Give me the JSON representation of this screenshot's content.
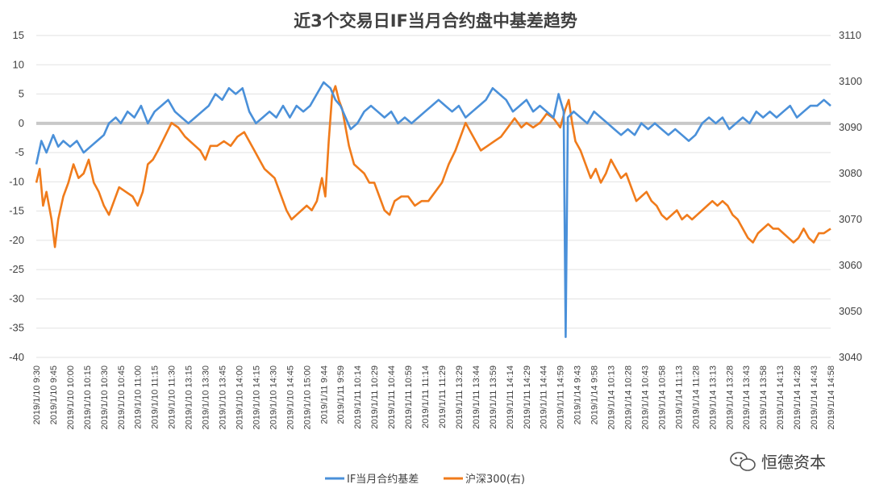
{
  "chart_data": {
    "type": "line",
    "title": "近3个交易日IF当月合约盘中基差趋势",
    "left_axis": {
      "min": -40,
      "max": 15,
      "step": 5,
      "ticks": [
        "15",
        "10",
        "5",
        "0",
        "-5",
        "-10",
        "-15",
        "-20",
        "-25",
        "-30",
        "-35",
        "-40"
      ]
    },
    "right_axis": {
      "min": 3040,
      "max": 3110,
      "step": 10,
      "ticks": [
        "3110",
        "3100",
        "3090",
        "3080",
        "3070",
        "3060",
        "3050",
        "3040"
      ]
    },
    "x_labels": [
      "2019/1/10 9:30",
      "2019/1/10 9:45",
      "2019/1/10 10:00",
      "2019/1/10 10:15",
      "2019/1/10 10:30",
      "2019/1/10 10:45",
      "2019/1/10 11:00",
      "2019/1/10 11:15",
      "2019/1/10 11:30",
      "2019/1/10 13:15",
      "2019/1/10 13:30",
      "2019/1/10 13:45",
      "2019/1/10 14:00",
      "2019/1/10 14:15",
      "2019/1/10 14:30",
      "2019/1/10 14:45",
      "2019/1/10 15:00",
      "2019/1/11 9:44",
      "2019/1/11 9:59",
      "2019/1/11 10:14",
      "2019/1/11 10:29",
      "2019/1/11 10:44",
      "2019/1/11 10:59",
      "2019/1/11 11:14",
      "2019/1/11 11:29",
      "2019/1/11 13:29",
      "2019/1/11 13:44",
      "2019/1/11 13:59",
      "2019/1/11 14:14",
      "2019/1/11 14:29",
      "2019/1/11 14:44",
      "2019/1/11 14:59",
      "2019/1/14 9:43",
      "2019/1/14 9:58",
      "2019/1/14 10:13",
      "2019/1/14 10:28",
      "2019/1/14 10:43",
      "2019/1/14 10:58",
      "2019/1/14 11:13",
      "2019/1/14 11:28",
      "2019/1/14 13:13",
      "2019/1/14 13:28",
      "2019/1/14 13:43",
      "2019/1/14 13:58",
      "2019/1/14 14:13",
      "2019/1/14 14:28",
      "2019/1/14 14:43",
      "2019/1/14 14:58"
    ],
    "series": [
      {
        "name": "IF当月合约基差",
        "axis": "left",
        "color": "#4a90d9",
        "points": [
          [
            0,
            -7
          ],
          [
            0.3,
            -3
          ],
          [
            0.6,
            -5
          ],
          [
            1,
            -2
          ],
          [
            1.3,
            -4
          ],
          [
            1.6,
            -3
          ],
          [
            2,
            -4
          ],
          [
            2.4,
            -3
          ],
          [
            2.8,
            -5
          ],
          [
            3.2,
            -4
          ],
          [
            3.6,
            -3
          ],
          [
            4,
            -2
          ],
          [
            4.3,
            0
          ],
          [
            4.7,
            1
          ],
          [
            5,
            0
          ],
          [
            5.4,
            2
          ],
          [
            5.8,
            1
          ],
          [
            6.2,
            3
          ],
          [
            6.6,
            0
          ],
          [
            7,
            2
          ],
          [
            7.4,
            3
          ],
          [
            7.8,
            4
          ],
          [
            8.2,
            2
          ],
          [
            8.6,
            1
          ],
          [
            9,
            0
          ],
          [
            9.4,
            1
          ],
          [
            9.8,
            2
          ],
          [
            10.2,
            3
          ],
          [
            10.6,
            5
          ],
          [
            11,
            4
          ],
          [
            11.4,
            6
          ],
          [
            11.8,
            5
          ],
          [
            12.2,
            6
          ],
          [
            12.6,
            2
          ],
          [
            13,
            0
          ],
          [
            13.4,
            1
          ],
          [
            13.8,
            2
          ],
          [
            14.2,
            1
          ],
          [
            14.6,
            3
          ],
          [
            15,
            1
          ],
          [
            15.4,
            3
          ],
          [
            15.8,
            2
          ],
          [
            16.2,
            3
          ],
          [
            16.6,
            5
          ],
          [
            17,
            7
          ],
          [
            17.4,
            6
          ],
          [
            17.7,
            4
          ],
          [
            18,
            3
          ],
          [
            18.3,
            1
          ],
          [
            18.6,
            -1
          ],
          [
            19,
            0
          ],
          [
            19.4,
            2
          ],
          [
            19.8,
            3
          ],
          [
            20.2,
            2
          ],
          [
            20.6,
            1
          ],
          [
            21,
            2
          ],
          [
            21.4,
            0
          ],
          [
            21.8,
            1
          ],
          [
            22.2,
            0
          ],
          [
            22.6,
            1
          ],
          [
            23,
            2
          ],
          [
            23.4,
            3
          ],
          [
            23.8,
            4
          ],
          [
            24.2,
            3
          ],
          [
            24.6,
            2
          ],
          [
            25,
            3
          ],
          [
            25.4,
            1
          ],
          [
            25.8,
            2
          ],
          [
            26.2,
            3
          ],
          [
            26.6,
            4
          ],
          [
            27,
            6
          ],
          [
            27.4,
            5
          ],
          [
            27.8,
            4
          ],
          [
            28.2,
            2
          ],
          [
            28.6,
            3
          ],
          [
            29,
            4
          ],
          [
            29.4,
            2
          ],
          [
            29.8,
            3
          ],
          [
            30.2,
            2
          ],
          [
            30.6,
            1
          ],
          [
            30.9,
            5
          ],
          [
            31.2,
            2
          ],
          [
            31.32,
            -36.5
          ],
          [
            31.45,
            1
          ],
          [
            31.8,
            2
          ],
          [
            32.2,
            1
          ],
          [
            32.6,
            0
          ],
          [
            33,
            2
          ],
          [
            33.4,
            1
          ],
          [
            33.8,
            0
          ],
          [
            34.2,
            -1
          ],
          [
            34.6,
            -2
          ],
          [
            35,
            -1
          ],
          [
            35.4,
            -2
          ],
          [
            35.8,
            0
          ],
          [
            36.2,
            -1
          ],
          [
            36.6,
            0
          ],
          [
            37,
            -1
          ],
          [
            37.4,
            -2
          ],
          [
            37.8,
            -1
          ],
          [
            38.2,
            -2
          ],
          [
            38.6,
            -3
          ],
          [
            39,
            -2
          ],
          [
            39.4,
            0
          ],
          [
            39.8,
            1
          ],
          [
            40.2,
            0
          ],
          [
            40.6,
            1
          ],
          [
            41,
            -1
          ],
          [
            41.4,
            0
          ],
          [
            41.8,
            1
          ],
          [
            42.2,
            0
          ],
          [
            42.6,
            2
          ],
          [
            43,
            1
          ],
          [
            43.4,
            2
          ],
          [
            43.8,
            1
          ],
          [
            44.2,
            2
          ],
          [
            44.6,
            3
          ],
          [
            45,
            1
          ],
          [
            45.4,
            2
          ],
          [
            45.8,
            3
          ],
          [
            46.2,
            3
          ],
          [
            46.6,
            4
          ],
          [
            47,
            3
          ]
        ]
      },
      {
        "name": "沪深300(右)",
        "axis": "right",
        "color": "#f07b1b",
        "points": [
          [
            0,
            3078
          ],
          [
            0.2,
            3081
          ],
          [
            0.4,
            3073
          ],
          [
            0.6,
            3076
          ],
          [
            0.9,
            3070
          ],
          [
            1.1,
            3064
          ],
          [
            1.3,
            3070
          ],
          [
            1.6,
            3075
          ],
          [
            1.9,
            3078
          ],
          [
            2.2,
            3082
          ],
          [
            2.5,
            3079
          ],
          [
            2.8,
            3080
          ],
          [
            3.1,
            3083
          ],
          [
            3.4,
            3078
          ],
          [
            3.7,
            3076
          ],
          [
            4,
            3073
          ],
          [
            4.3,
            3071
          ],
          [
            4.6,
            3074
          ],
          [
            4.9,
            3077
          ],
          [
            5.3,
            3076
          ],
          [
            5.7,
            3075
          ],
          [
            6,
            3073
          ],
          [
            6.3,
            3076
          ],
          [
            6.6,
            3082
          ],
          [
            6.9,
            3083
          ],
          [
            7.2,
            3085
          ],
          [
            7.6,
            3088
          ],
          [
            8,
            3091
          ],
          [
            8.4,
            3090
          ],
          [
            8.8,
            3088
          ],
          [
            9.1,
            3087
          ],
          [
            9.4,
            3086
          ],
          [
            9.7,
            3085
          ],
          [
            10,
            3083
          ],
          [
            10.3,
            3086
          ],
          [
            10.7,
            3086
          ],
          [
            11.1,
            3087
          ],
          [
            11.5,
            3086
          ],
          [
            11.9,
            3088
          ],
          [
            12.3,
            3089
          ],
          [
            12.6,
            3087
          ],
          [
            12.9,
            3085
          ],
          [
            13.2,
            3083
          ],
          [
            13.5,
            3081
          ],
          [
            13.8,
            3080
          ],
          [
            14.1,
            3079
          ],
          [
            14.5,
            3075
          ],
          [
            14.8,
            3072
          ],
          [
            15.1,
            3070
          ],
          [
            15.4,
            3071
          ],
          [
            15.7,
            3072
          ],
          [
            16,
            3073
          ],
          [
            16.3,
            3072
          ],
          [
            16.6,
            3074
          ],
          [
            16.9,
            3079
          ],
          [
            17.1,
            3075
          ],
          [
            17.3,
            3087
          ],
          [
            17.5,
            3097
          ],
          [
            17.7,
            3099
          ],
          [
            17.9,
            3096
          ],
          [
            18.1,
            3094
          ],
          [
            18.3,
            3090
          ],
          [
            18.5,
            3086
          ],
          [
            18.8,
            3082
          ],
          [
            19.1,
            3081
          ],
          [
            19.4,
            3080
          ],
          [
            19.7,
            3078
          ],
          [
            20,
            3078
          ],
          [
            20.3,
            3075
          ],
          [
            20.6,
            3072
          ],
          [
            20.9,
            3071
          ],
          [
            21.2,
            3074
          ],
          [
            21.6,
            3075
          ],
          [
            22,
            3075
          ],
          [
            22.4,
            3073
          ],
          [
            22.8,
            3074
          ],
          [
            23.2,
            3074
          ],
          [
            23.6,
            3076
          ],
          [
            24,
            3078
          ],
          [
            24.4,
            3082
          ],
          [
            24.8,
            3085
          ],
          [
            25.1,
            3088
          ],
          [
            25.4,
            3091
          ],
          [
            25.7,
            3089
          ],
          [
            26,
            3087
          ],
          [
            26.3,
            3085
          ],
          [
            26.7,
            3086
          ],
          [
            27.1,
            3087
          ],
          [
            27.5,
            3088
          ],
          [
            27.9,
            3090
          ],
          [
            28.3,
            3092
          ],
          [
            28.7,
            3090
          ],
          [
            29,
            3091
          ],
          [
            29.4,
            3090
          ],
          [
            29.8,
            3091
          ],
          [
            30.2,
            3093
          ],
          [
            30.6,
            3092
          ],
          [
            31,
            3090
          ],
          [
            31.3,
            3094
          ],
          [
            31.5,
            3096
          ],
          [
            31.7,
            3091
          ],
          [
            31.9,
            3087
          ],
          [
            32.2,
            3085
          ],
          [
            32.5,
            3082
          ],
          [
            32.8,
            3079
          ],
          [
            33.1,
            3081
          ],
          [
            33.4,
            3078
          ],
          [
            33.7,
            3080
          ],
          [
            34,
            3083
          ],
          [
            34.3,
            3081
          ],
          [
            34.6,
            3079
          ],
          [
            34.9,
            3080
          ],
          [
            35.2,
            3077
          ],
          [
            35.5,
            3074
          ],
          [
            35.8,
            3075
          ],
          [
            36.1,
            3076
          ],
          [
            36.4,
            3074
          ],
          [
            36.7,
            3073
          ],
          [
            37,
            3071
          ],
          [
            37.3,
            3070
          ],
          [
            37.6,
            3071
          ],
          [
            37.9,
            3072
          ],
          [
            38.2,
            3070
          ],
          [
            38.5,
            3071
          ],
          [
            38.8,
            3070
          ],
          [
            39.1,
            3071
          ],
          [
            39.4,
            3072
          ],
          [
            39.7,
            3073
          ],
          [
            40,
            3074
          ],
          [
            40.3,
            3073
          ],
          [
            40.6,
            3074
          ],
          [
            40.9,
            3073
          ],
          [
            41.2,
            3071
          ],
          [
            41.5,
            3070
          ],
          [
            41.8,
            3068
          ],
          [
            42.1,
            3066
          ],
          [
            42.4,
            3065
          ],
          [
            42.7,
            3067
          ],
          [
            43,
            3068
          ],
          [
            43.3,
            3069
          ],
          [
            43.6,
            3068
          ],
          [
            43.9,
            3068
          ],
          [
            44.2,
            3067
          ],
          [
            44.5,
            3066
          ],
          [
            44.8,
            3065
          ],
          [
            45.1,
            3066
          ],
          [
            45.4,
            3068
          ],
          [
            45.7,
            3066
          ],
          [
            46,
            3065
          ],
          [
            46.3,
            3067
          ],
          [
            46.6,
            3067
          ],
          [
            47,
            3068
          ]
        ]
      }
    ],
    "reference_line": {
      "axis": "left",
      "value": 0,
      "color": "#c8c8c8"
    },
    "legend": {
      "placement": "bottom-center",
      "items": [
        {
          "label": "IF当月合约基差",
          "color": "#4a90d9"
        },
        {
          "label": "沪深300(右)",
          "color": "#f07b1b"
        }
      ]
    },
    "grid": true
  },
  "watermark": {
    "text": "恒德资本",
    "icon": "wechat-bubble-icon"
  }
}
